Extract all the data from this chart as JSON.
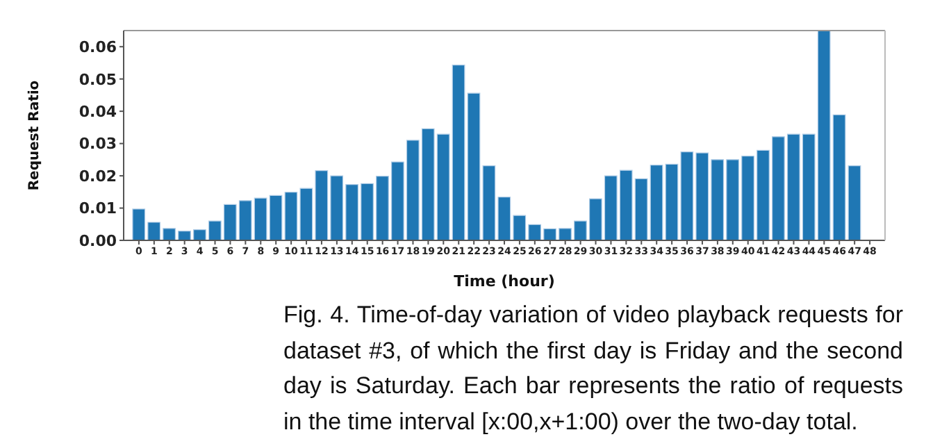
{
  "chart_data": {
    "type": "bar",
    "xlabel": "Time (hour)",
    "ylabel": "Request Ratio",
    "x": [
      0,
      1,
      2,
      3,
      4,
      5,
      6,
      7,
      8,
      9,
      10,
      11,
      12,
      13,
      14,
      15,
      16,
      17,
      18,
      19,
      20,
      21,
      22,
      23,
      24,
      25,
      26,
      27,
      28,
      29,
      30,
      31,
      32,
      33,
      34,
      35,
      36,
      37,
      38,
      39,
      40,
      41,
      42,
      43,
      44,
      45,
      46,
      47
    ],
    "values": [
      0.0097,
      0.0056,
      0.0037,
      0.0029,
      0.0033,
      0.006,
      0.0111,
      0.0123,
      0.0131,
      0.0139,
      0.0149,
      0.0161,
      0.0216,
      0.02,
      0.0173,
      0.0176,
      0.0199,
      0.0243,
      0.031,
      0.0346,
      0.0329,
      0.0543,
      0.0456,
      0.0231,
      0.0134,
      0.0077,
      0.0049,
      0.0036,
      0.0037,
      0.006,
      0.0129,
      0.02,
      0.0217,
      0.0191,
      0.0233,
      0.0236,
      0.0274,
      0.0271,
      0.025,
      0.025,
      0.0261,
      0.0279,
      0.0321,
      0.0329,
      0.0329,
      0.065,
      0.0389,
      0.0231
    ],
    "color": "#1f77b4",
    "xlim": [
      -1,
      49
    ],
    "xticks": [
      0,
      1,
      2,
      3,
      4,
      5,
      6,
      7,
      8,
      9,
      10,
      11,
      12,
      13,
      14,
      15,
      16,
      17,
      18,
      19,
      20,
      21,
      22,
      23,
      24,
      25,
      26,
      27,
      28,
      29,
      30,
      31,
      32,
      33,
      34,
      35,
      36,
      37,
      38,
      39,
      40,
      41,
      42,
      43,
      44,
      45,
      46,
      47,
      48
    ],
    "ylim": [
      0,
      0.065
    ],
    "yticks": [
      {
        "value": 0,
        "label": "0.00"
      },
      {
        "value": 0.01,
        "label": "0.01"
      },
      {
        "value": 0.02,
        "label": "0.02"
      },
      {
        "value": 0.03,
        "label": "0.03"
      },
      {
        "value": 0.04,
        "label": "0.04"
      },
      {
        "value": 0.05,
        "label": "0.05"
      },
      {
        "value": 0.06,
        "label": "0.06"
      }
    ],
    "grid": false,
    "legend": false,
    "annotations": [
      "Fig. 4.  Time-of-day variation of video playback requests for dataset #3, of which the first day is Friday and the second day is Saturday. Each bar represents the ratio of requests in the time interval [x:00,x+1:00) over the two-day total."
    ]
  }
}
